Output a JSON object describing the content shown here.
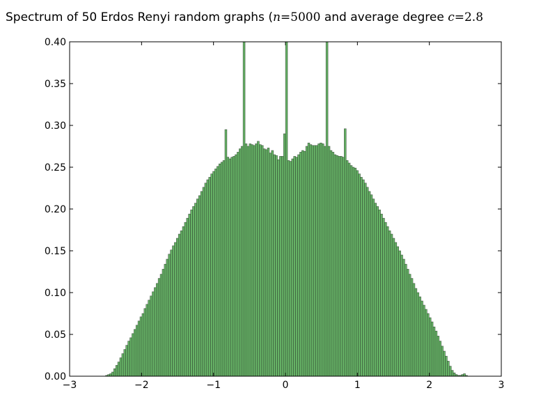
{
  "chart_data": {
    "type": "bar",
    "title": {
      "prefix": "Spectrum of 50 Erdos Renyi random graphs (",
      "n_symbol": "n",
      "n_value": "=5000",
      "middle": " and average degree ",
      "c_symbol": "c",
      "c_value": "=2.8"
    },
    "xlabel": "",
    "ylabel": "",
    "xlim": [
      -3,
      3
    ],
    "ylim": [
      0,
      0.4
    ],
    "grid": false,
    "xticks": [
      -3,
      -2,
      -1,
      0,
      1,
      2,
      3
    ],
    "xtick_labels": [
      "−3",
      "−2",
      "−1",
      "0",
      "1",
      "2",
      "3"
    ],
    "yticks": [
      0,
      0.05,
      0.1,
      0.15,
      0.2,
      0.25,
      0.3,
      0.35,
      0.4
    ],
    "ytick_labels": [
      "0.00",
      "0.05",
      "0.10",
      "0.15",
      "0.20",
      "0.25",
      "0.30",
      "0.35",
      "0.40"
    ],
    "bar_color": "#66b366",
    "edge_color": "#2a3a2a",
    "bin_start": -2.5,
    "bin_width": 0.0281,
    "values": [
      0.001,
      0.002,
      0.003,
      0.005,
      0.009,
      0.013,
      0.017,
      0.022,
      0.027,
      0.032,
      0.037,
      0.042,
      0.046,
      0.051,
      0.056,
      0.061,
      0.066,
      0.071,
      0.075,
      0.081,
      0.086,
      0.091,
      0.096,
      0.101,
      0.106,
      0.111,
      0.117,
      0.122,
      0.128,
      0.134,
      0.14,
      0.146,
      0.151,
      0.156,
      0.16,
      0.165,
      0.17,
      0.174,
      0.179,
      0.184,
      0.189,
      0.194,
      0.199,
      0.203,
      0.207,
      0.212,
      0.216,
      0.221,
      0.226,
      0.231,
      0.235,
      0.238,
      0.242,
      0.245,
      0.248,
      0.251,
      0.254,
      0.256,
      0.258,
      0.295,
      0.262,
      0.26,
      0.262,
      0.263,
      0.265,
      0.268,
      0.272,
      0.275,
      0.45,
      0.278,
      0.275,
      0.278,
      0.277,
      0.276,
      0.278,
      0.281,
      0.277,
      0.276,
      0.272,
      0.271,
      0.273,
      0.267,
      0.27,
      0.265,
      0.264,
      0.259,
      0.263,
      0.263,
      0.29,
      0.45,
      0.258,
      0.257,
      0.26,
      0.263,
      0.262,
      0.265,
      0.268,
      0.27,
      0.269,
      0.275,
      0.279,
      0.277,
      0.276,
      0.276,
      0.276,
      0.278,
      0.279,
      0.278,
      0.275,
      0.45,
      0.275,
      0.27,
      0.268,
      0.265,
      0.264,
      0.263,
      0.263,
      0.262,
      0.296,
      0.258,
      0.255,
      0.252,
      0.25,
      0.249,
      0.246,
      0.242,
      0.238,
      0.235,
      0.231,
      0.226,
      0.221,
      0.217,
      0.212,
      0.207,
      0.203,
      0.199,
      0.194,
      0.189,
      0.184,
      0.179,
      0.174,
      0.17,
      0.165,
      0.16,
      0.155,
      0.15,
      0.145,
      0.14,
      0.134,
      0.128,
      0.122,
      0.117,
      0.111,
      0.105,
      0.1,
      0.095,
      0.09,
      0.085,
      0.08,
      0.075,
      0.07,
      0.065,
      0.059,
      0.054,
      0.048,
      0.042,
      0.036,
      0.03,
      0.024,
      0.018,
      0.012,
      0.007,
      0.004,
      0.002,
      0.001,
      0.001,
      0.002,
      0.003,
      0.001,
      0.0
    ]
  }
}
